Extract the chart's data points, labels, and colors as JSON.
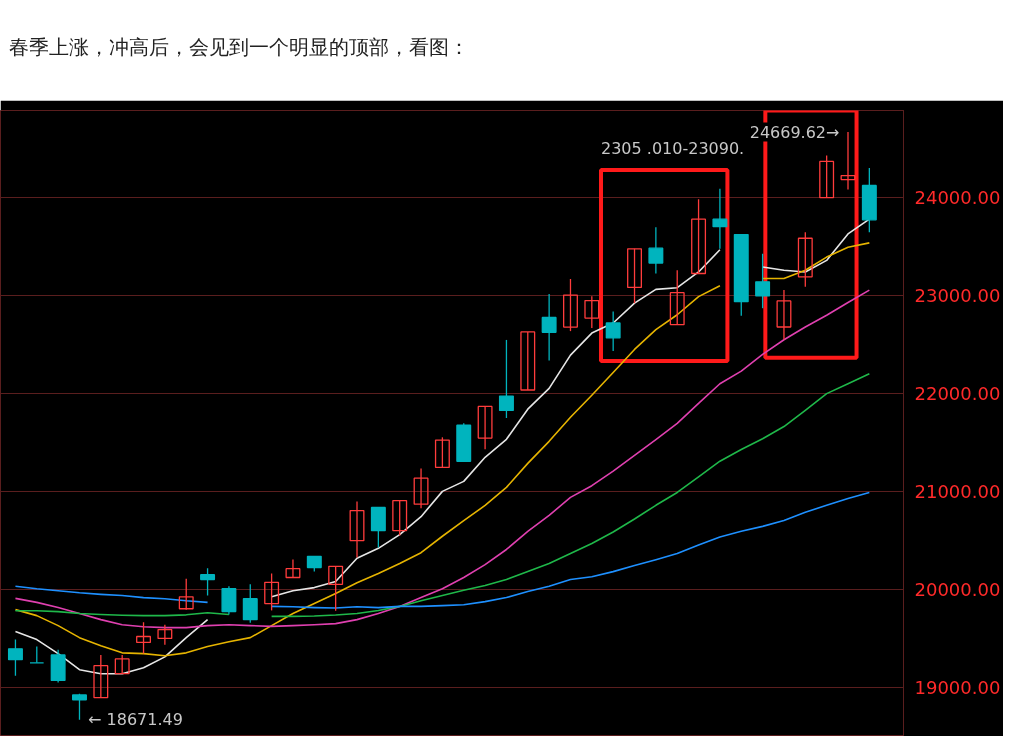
{
  "chart_data": {
    "type": "candlestick",
    "title": "春季上涨，冲高后，会见到一个明显的顶部，看图：",
    "categories": [
      null,
      null,
      null,
      null,
      null,
      null,
      null,
      null,
      null,
      null,
      null,
      null,
      null,
      null,
      null,
      null,
      null,
      null,
      null,
      null,
      null,
      null,
      null,
      null,
      null,
      null,
      null,
      null,
      null,
      null,
      null,
      null,
      null,
      null,
      null,
      null,
      null,
      null,
      null,
      null,
      null
    ],
    "ohlc": [
      [
        19395,
        19489,
        19121,
        19284
      ],
      [
        19252,
        19419,
        19252,
        19252
      ],
      [
        19333,
        19386,
        19051,
        19072
      ],
      [
        18924,
        18937,
        18671.49,
        18875
      ],
      [
        18896,
        19333,
        18896,
        19223
      ],
      [
        19141,
        19333,
        19141,
        19292
      ],
      [
        19460,
        19665,
        19346,
        19521
      ],
      [
        19501,
        19640,
        19436,
        19591
      ],
      [
        19804,
        20110,
        19795,
        19926
      ],
      [
        20151,
        20217,
        19939,
        20102
      ],
      [
        20008,
        20033,
        19746,
        19775
      ],
      [
        19906,
        20053,
        19661,
        19693
      ],
      [
        19857,
        20164,
        19787,
        20074
      ],
      [
        20123,
        20307,
        20123,
        20213
      ],
      [
        20339,
        20339,
        20184,
        20225
      ],
      [
        20053,
        20237,
        19783,
        20237
      ],
      [
        20499,
        20900,
        20327,
        20806
      ],
      [
        20838,
        20838,
        20429,
        20601
      ],
      [
        20601,
        20908,
        20552,
        20908
      ],
      [
        20871,
        21235,
        20830,
        21137
      ],
      [
        21247,
        21554,
        21247,
        21526
      ],
      [
        21677,
        21697,
        21309,
        21309
      ],
      [
        21546,
        21869,
        21432,
        21869
      ],
      [
        21975,
        22548,
        21751,
        21828
      ],
      [
        22037,
        22630,
        22037,
        22630
      ],
      [
        22777,
        23018,
        22339,
        22626
      ],
      [
        22679,
        23170,
        22638,
        23006
      ],
      [
        22771,
        22994,
        22670,
        22950
      ],
      [
        22721,
        22838,
        22434,
        22569
      ],
      [
        23084,
        23478,
        22923,
        23478
      ],
      [
        23485,
        23697,
        23226,
        23333
      ],
      [
        22704,
        23259,
        22704,
        23030
      ],
      [
        23226,
        23983,
        23226,
        23781
      ],
      [
        23781,
        24091,
        23478,
        23704
      ],
      [
        23623,
        23623,
        22795,
        22939
      ],
      [
        23141,
        23428,
        22872,
        22997
      ],
      [
        22680,
        23057,
        22552,
        22946
      ],
      [
        23192,
        23646,
        23091,
        23586
      ],
      [
        24000,
        24431,
        24000,
        24370
      ],
      [
        24185,
        24669.62,
        24084,
        24226
      ],
      [
        24125,
        24303,
        23646,
        23774
      ]
    ],
    "colors": [
      "#00b4be",
      "#00b4be",
      "#00b4be",
      "#00b4be",
      "#ff3c3c",
      "#ff3c3c",
      "#ff3c3c",
      "#ff3c3c",
      "#ff3c3c",
      "#00b4be",
      "#00b4be",
      "#00b4be",
      "#ff3c3c",
      "#ff3c3c",
      "#00b4be",
      "#ff3c3c",
      "#ff3c3c",
      "#00b4be",
      "#ff3c3c",
      "#ff3c3c",
      "#ff3c3c",
      "#00b4be",
      "#ff3c3c",
      "#00b4be",
      "#ff3c3c",
      "#00b4be",
      "#ff3c3c",
      "#ff3c3c",
      "#00b4be",
      "#ff3c3c",
      "#00b4be",
      "#ff3c3c",
      "#ff3c3c",
      "#00b4be",
      "#00b4be",
      "#00b4be",
      "#ff3c3c",
      "#ff3c3c",
      "#ff3c3c",
      "#ff3c3c",
      "#00b4be"
    ],
    "series": [
      {
        "type": "line",
        "color": "#e6e6e6",
        "values": [
          19571,
          19489,
          19346,
          19182,
          19141,
          19141,
          19202,
          19313,
          19509,
          19693,
          null,
          null,
          19926,
          19988,
          20020,
          20082,
          20319,
          20421,
          20560,
          20744,
          21002,
          21104,
          21350,
          21534,
          21841,
          22053,
          22393,
          22618,
          22721,
          22923,
          23064,
          23081,
          23242,
          23468,
          null,
          23293,
          23259,
          23242,
          23360,
          23630,
          23781
        ]
      },
      {
        "type": "line",
        "color": "#e6b400",
        "values": [
          19795,
          19734,
          19632,
          19509,
          19427,
          19354,
          19346,
          19325,
          19354,
          19419,
          19468,
          19509,
          19632,
          19755,
          19857,
          19959,
          20070,
          20164,
          20266,
          20376,
          20544,
          20703,
          20859,
          21043,
          21288,
          21513,
          21759,
          21984,
          22215,
          22451,
          22653,
          22805,
          22990,
          23101,
          null,
          23175,
          23175,
          23259,
          23394,
          23495,
          23539
        ]
      },
      {
        "type": "line",
        "color": "#e040b0",
        "values": [
          19910,
          19869,
          19816,
          19755,
          19693,
          19640,
          19620,
          19611,
          19611,
          19632,
          19640,
          19632,
          19624,
          19632,
          19640,
          19652,
          19693,
          19755,
          19828,
          19918,
          20008,
          20123,
          20254,
          20409,
          20593,
          20757,
          20941,
          21060,
          21209,
          21370,
          21530,
          21697,
          21900,
          22101,
          22230,
          22400,
          22550,
          22680,
          22800,
          22930,
          23057
        ]
      },
      {
        "type": "line",
        "color": "#1fb84a",
        "values": [
          19783,
          19783,
          19775,
          19755,
          19746,
          19738,
          19734,
          19734,
          19742,
          19763,
          19746,
          null,
          19726,
          19726,
          19730,
          19740,
          19755,
          19787,
          19828,
          19885,
          19939,
          19992,
          20041,
          20102,
          20184,
          20266,
          20368,
          20470,
          20587,
          20720,
          20860,
          20991,
          21150,
          21310,
          21430,
          21540,
          21664,
          21830,
          22000,
          22100,
          22202
        ]
      },
      {
        "type": "line",
        "color": "#1e90ff",
        "values": [
          20033,
          20008,
          19988,
          19967,
          19951,
          19939,
          19918,
          19906,
          19885,
          19869,
          null,
          null,
          19828,
          19824,
          19816,
          19812,
          19824,
          19816,
          19828,
          19828,
          19836,
          19845,
          19877,
          19918,
          19980,
          20033,
          20102,
          20130,
          20183,
          20245,
          20305,
          20368,
          20455,
          20537,
          20595,
          20645,
          20705,
          20789,
          20860,
          20930,
          20991
        ]
      }
    ],
    "ylim": [
      18500,
      24890
    ],
    "yticks": [
      {
        "value": 19000,
        "label": "19000.00"
      },
      {
        "value": 20000,
        "label": "20000.00"
      },
      {
        "value": 21000,
        "label": "21000.00"
      },
      {
        "value": 22000,
        "label": "22000.00"
      },
      {
        "value": 23000,
        "label": "23000.00"
      },
      {
        "value": 24000,
        "label": "24000.00"
      }
    ],
    "grid": "y",
    "tick_labels": "y",
    "annotations": [
      "24669.62→",
      "← 18671.49",
      "2305 .010-23090."
    ]
  }
}
